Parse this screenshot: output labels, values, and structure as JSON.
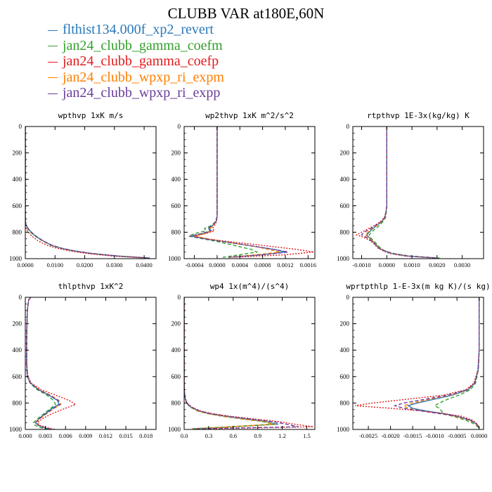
{
  "figure": {
    "title": "CLUBB VAR at180E,60N"
  },
  "legend": [
    {
      "label": "flthist134.000f_xp2_revert",
      "color": "#2a78b8"
    },
    {
      "label": "jan24_clubb_gamma_coefm",
      "color": "#33a02c"
    },
    {
      "label": "jan24_clubb_gamma_coefp",
      "color": "#e31a1c"
    },
    {
      "label": "jan24_clubb_wpxp_ri_expm",
      "color": "#ff7f00"
    },
    {
      "label": "jan24_clubb_wpxp_ri_expp",
      "color": "#6a3d9a"
    }
  ],
  "chart_data": [
    {
      "type": "line",
      "title": "wpthvp  1xK m/s",
      "xlim": [
        0,
        0.044
      ],
      "ylim": [
        1000,
        0
      ],
      "xticks": [
        0,
        0.01,
        0.02,
        0.03,
        0.04
      ],
      "xtick_labels": [
        "0.0000",
        "0.0100",
        "0.0200",
        "0.0300",
        "0.0400"
      ],
      "yticks": [
        0,
        200,
        400,
        600,
        800,
        1000
      ],
      "ytick_labels": [
        "0",
        "200",
        "400",
        "600",
        "800",
        "1000"
      ],
      "y": [
        0,
        600,
        700,
        740,
        760,
        780,
        800,
        820,
        840,
        860,
        880,
        900,
        920,
        940,
        960,
        980,
        995
      ],
      "series": [
        {
          "x": [
            0,
            0,
            0,
            0.0002,
            0.0006,
            0.0012,
            0.002,
            0.003,
            0.0042,
            0.0056,
            0.0072,
            0.009,
            0.012,
            0.016,
            0.022,
            0.031,
            0.042
          ]
        },
        {
          "x": [
            0,
            0,
            0,
            0.0001,
            0.0004,
            0.001,
            0.0018,
            0.0028,
            0.004,
            0.0054,
            0.007,
            0.0088,
            0.0118,
            0.0158,
            0.0218,
            0.0305,
            0.0415
          ]
        },
        {
          "x": [
            0,
            0,
            0,
            0,
            0.0001,
            0.0004,
            0.001,
            0.0018,
            0.0028,
            0.004,
            0.0055,
            0.0075,
            0.0105,
            0.0145,
            0.0205,
            0.029,
            0.04
          ]
        },
        {
          "x": [
            0,
            0,
            0,
            0.0002,
            0.0006,
            0.0012,
            0.0021,
            0.0031,
            0.0043,
            0.0057,
            0.0073,
            0.0092,
            0.0122,
            0.0162,
            0.0222,
            0.031,
            0.042
          ]
        },
        {
          "x": [
            0,
            0,
            0,
            0.0002,
            0.0006,
            0.0012,
            0.002,
            0.003,
            0.0042,
            0.0056,
            0.0072,
            0.0091,
            0.0121,
            0.0161,
            0.0221,
            0.0308,
            0.0418
          ]
        }
      ]
    },
    {
      "type": "line",
      "title": "wp2thvp  1xK m^2/s^2",
      "xlim": [
        -0.00058,
        0.00172
      ],
      "ylim": [
        1000,
        0
      ],
      "xticks": [
        -0.0004,
        0,
        0.0004,
        0.0008,
        0.0012,
        0.0016
      ],
      "xtick_labels": [
        "-0.0004",
        "0.0000",
        "0.0004",
        "0.0008",
        "0.0012",
        "0.0016"
      ],
      "yticks": [
        0,
        200,
        400,
        600,
        800,
        1000
      ],
      "ytick_labels": [
        "0",
        "200",
        "400",
        "600",
        "800",
        "1000"
      ],
      "y": [
        0,
        250,
        280,
        600,
        680,
        720,
        750,
        770,
        790,
        810,
        830,
        850,
        870,
        890,
        910,
        930,
        950,
        970,
        990
      ],
      "series": [
        {
          "x": [
            0,
            0,
            0,
            0,
            0,
            -2e-05,
            -8e-05,
            -0.00015,
            -0.0001,
            -0.00025,
            -0.00045,
            -0.0002,
            0.0001,
            0.0004,
            0.0007,
            0.001,
            0.0012,
            0.0008,
            0.0002
          ]
        },
        {
          "x": [
            0,
            0,
            0,
            0,
            0,
            -3e-05,
            -0.0001,
            -0.00022,
            -0.0002,
            -0.0004,
            -0.0005,
            -0.00025,
            0.0,
            0.0002,
            0.0004,
            0.0006,
            0.0007,
            0.0004,
            0.0001
          ]
        },
        {
          "x": [
            0,
            0,
            0,
            0,
            0,
            -1e-05,
            -5e-05,
            -8e-05,
            -5e-05,
            -0.0002,
            -0.0004,
            -0.0002,
            0.0002,
            0.0006,
            0.001,
            0.0014,
            0.0017,
            0.0012,
            0.0003
          ]
        },
        {
          "x": [
            0,
            0,
            0,
            0,
            0,
            -2e-05,
            -7e-05,
            -0.00012,
            -0.0001,
            -0.0002,
            -0.0004,
            -0.00015,
            0.0001,
            0.0004,
            0.0007,
            0.0009,
            0.0011,
            0.0007,
            0.0002
          ]
        },
        {
          "x": [
            0,
            0,
            0,
            0,
            0,
            -2e-05,
            -9e-05,
            -0.00016,
            -0.00012,
            -0.00028,
            -0.00048,
            -0.00022,
            0.0001,
            0.0004,
            0.0007,
            0.001,
            0.00125,
            0.0008,
            0.0002
          ]
        }
      ]
    },
    {
      "type": "line",
      "title": "rtpthvp  1E-3x(kg/kg) K",
      "xlim": [
        -0.00135,
        0.00385
      ],
      "ylim": [
        1000,
        0
      ],
      "xticks": [
        -0.001,
        0,
        0.001,
        0.002,
        0.003
      ],
      "xtick_labels": [
        "-0.0010",
        "0.0000",
        "0.0010",
        "0.0020",
        "0.0030"
      ],
      "yticks": [
        0,
        200,
        400,
        600,
        800,
        1000
      ],
      "ytick_labels": [
        "0",
        "200",
        "400",
        "600",
        "800",
        "1000"
      ],
      "y": [
        0,
        600,
        650,
        690,
        720,
        750,
        780,
        800,
        820,
        840,
        860,
        880,
        900,
        920,
        940,
        960,
        980,
        995
      ],
      "series": [
        {
          "x": [
            0,
            0,
            -3e-05,
            -8e-05,
            -0.0002,
            -0.0004,
            -0.0006,
            -0.0007,
            -0.0008,
            -0.0007,
            -0.0006,
            -0.0005,
            -0.0004,
            -0.0003,
            -0.0001,
            0.0002,
            0.0008,
            0.002
          ]
        },
        {
          "x": [
            0,
            0,
            -2e-05,
            -5e-05,
            -0.00015,
            -0.0003,
            -0.0005,
            -0.0006,
            -0.0007,
            -0.00065,
            -0.00055,
            -0.00045,
            -0.00035,
            -0.00025,
            -8e-05,
            0.00025,
            0.0009,
            0.0021
          ]
        },
        {
          "x": [
            0,
            0,
            -4e-05,
            -0.0001,
            -0.00025,
            -0.0005,
            -0.0008,
            -0.001,
            -0.0012,
            -0.0009,
            -0.0007,
            -0.00055,
            -0.00045,
            -0.00035,
            -0.00015,
            0.0001,
            0.0007,
            0.0019
          ]
        },
        {
          "x": [
            0,
            0,
            -3e-05,
            -8e-05,
            -0.0002,
            -0.0004,
            -0.00065,
            -0.00075,
            -0.00085,
            -0.00072,
            -0.0006,
            -0.0005,
            -0.0004,
            -0.0003,
            -0.0001,
            0.0002,
            0.0008,
            0.002
          ]
        },
        {
          "x": [
            0,
            0,
            -3e-05,
            -9e-05,
            -0.00022,
            -0.00045,
            -0.0007,
            -0.0009,
            -0.001,
            -0.0008,
            -0.00065,
            -0.00052,
            -0.00042,
            -0.00032,
            -0.00012,
            0.00018,
            0.00078,
            0.00198
          ]
        }
      ]
    },
    {
      "type": "line",
      "title": "thlpthvp  1xK^2",
      "xlim": [
        0,
        0.0195
      ],
      "ylim": [
        1000,
        0
      ],
      "xticks": [
        0,
        0.003,
        0.006,
        0.009,
        0.012,
        0.015,
        0.018
      ],
      "xtick_labels": [
        "0.000",
        "0.003",
        "0.006",
        "0.009",
        "0.012",
        "0.015",
        "0.018"
      ],
      "yticks": [
        0,
        200,
        400,
        600,
        800,
        1000
      ],
      "ytick_labels": [
        "0",
        "200",
        "400",
        "600",
        "800",
        "1000"
      ],
      "y": [
        0,
        20,
        100,
        300,
        500,
        600,
        650,
        700,
        740,
        780,
        810,
        840,
        880,
        920,
        950,
        970,
        990,
        1000
      ],
      "series": [
        {
          "x": [
            0.0008,
            0.0005,
            0.0003,
            0.0002,
            0.0002,
            0.0003,
            0.0008,
            0.002,
            0.0035,
            0.0048,
            0.005,
            0.004,
            0.003,
            0.002,
            0.0015,
            0.002,
            0.003,
            0.004
          ]
        },
        {
          "x": [
            0.0008,
            0.0005,
            0.0003,
            0.0002,
            0.0002,
            0.0003,
            0.0007,
            0.0018,
            0.0032,
            0.0042,
            0.0045,
            0.0038,
            0.0028,
            0.0018,
            0.0012,
            0.0015,
            0.0025,
            0.0035
          ]
        },
        {
          "x": [
            0.0008,
            0.0005,
            0.0003,
            0.0002,
            0.0002,
            0.0004,
            0.0009,
            0.0024,
            0.0045,
            0.0065,
            0.0075,
            0.006,
            0.004,
            0.0025,
            0.0018,
            0.0022,
            0.0035,
            0.0045
          ]
        },
        {
          "x": [
            0.0008,
            0.0005,
            0.0003,
            0.0002,
            0.0002,
            0.0003,
            0.0008,
            0.0021,
            0.0037,
            0.005,
            0.0053,
            0.0043,
            0.0032,
            0.0021,
            0.0016,
            0.0021,
            0.0031,
            0.0041
          ]
        },
        {
          "x": [
            0.0008,
            0.0005,
            0.0003,
            0.0002,
            0.0002,
            0.0003,
            0.0008,
            0.002,
            0.0036,
            0.0049,
            0.0052,
            0.0042,
            0.0031,
            0.0021,
            0.0015,
            0.002,
            0.003,
            0.004
          ]
        }
      ]
    },
    {
      "type": "line",
      "title": "wp4  1x(m^4)/(s^4)",
      "xlim": [
        0,
        1.6
      ],
      "ylim": [
        1000,
        0
      ],
      "xticks": [
        0,
        0.3,
        0.6,
        0.9,
        1.2,
        1.5
      ],
      "xtick_labels": [
        "0.0",
        "0.3",
        "0.6",
        "0.9",
        "1.2",
        "1.5"
      ],
      "yticks": [
        0,
        200,
        400,
        600,
        800,
        1000
      ],
      "ytick_labels": [
        "0",
        "200",
        "400",
        "600",
        "800",
        "1000"
      ],
      "y": [
        0,
        600,
        700,
        760,
        800,
        830,
        860,
        880,
        900,
        920,
        940,
        960,
        980,
        995
      ],
      "series": [
        {
          "x": [
            0,
            0,
            0.002,
            0.01,
            0.03,
            0.08,
            0.18,
            0.3,
            0.5,
            0.75,
            1.0,
            1.15,
            0.6,
            0.1
          ]
        },
        {
          "x": [
            0,
            0,
            0.002,
            0.01,
            0.03,
            0.07,
            0.16,
            0.28,
            0.46,
            0.7,
            0.95,
            1.1,
            0.55,
            0.1
          ]
        },
        {
          "x": [
            0,
            0,
            0.002,
            0.012,
            0.035,
            0.09,
            0.2,
            0.34,
            0.56,
            0.85,
            1.15,
            1.35,
            1.58,
            0.2
          ]
        },
        {
          "x": [
            0,
            0,
            0.002,
            0.01,
            0.03,
            0.08,
            0.17,
            0.29,
            0.48,
            0.72,
            0.98,
            1.12,
            0.58,
            0.1
          ]
        },
        {
          "x": [
            0,
            0,
            0.002,
            0.01,
            0.032,
            0.085,
            0.19,
            0.32,
            0.53,
            0.8,
            1.08,
            1.25,
            1.4,
            0.15
          ]
        }
      ]
    },
    {
      "type": "line",
      "title": "wprtpthlp  1-E-3x(m kg K)/(s kg)",
      "xlim": [
        -0.00285,
        0.0001
      ],
      "ylim": [
        1000,
        0
      ],
      "xticks": [
        -0.0025,
        -0.002,
        -0.0015,
        -0.001,
        -0.0005,
        0
      ],
      "xtick_labels": [
        "-0.0025",
        "-0.0020",
        "-0.0015",
        "-0.0010",
        "-0.0005",
        "0.0000"
      ],
      "yticks": [
        0,
        200,
        400,
        600,
        800,
        1000
      ],
      "ytick_labels": [
        "0",
        "200",
        "400",
        "600",
        "800",
        "1000"
      ],
      "y": [
        0,
        400,
        550,
        650,
        700,
        740,
        770,
        800,
        820,
        840,
        860,
        880,
        900,
        930,
        960,
        990
      ],
      "series": [
        {
          "x": [
            0,
            0,
            -2e-05,
            -0.0001,
            -0.00025,
            -0.0006,
            -0.001,
            -0.0014,
            -0.0016,
            -0.0015,
            -0.0012,
            -0.0008,
            -0.0005,
            -0.0002,
            -5e-05,
            0
          ]
        },
        {
          "x": [
            0,
            0,
            -2e-05,
            -8e-05,
            -0.0002,
            -0.00045,
            -0.0007,
            -0.0009,
            -0.001,
            -0.0009,
            -0.00085,
            -0.0008,
            -0.0006,
            -0.0003,
            -0.0001,
            0
          ]
        },
        {
          "x": [
            0,
            0,
            -3e-05,
            -0.00012,
            -0.0003,
            -0.0008,
            -0.0016,
            -0.0024,
            -0.0028,
            -0.002,
            -0.0013,
            -0.0008,
            -0.0004,
            -0.00015,
            -4e-05,
            0
          ]
        },
        {
          "x": [
            0,
            0,
            -2e-05,
            -0.0001,
            -0.00026,
            -0.00065,
            -0.0011,
            -0.0015,
            -0.0017,
            -0.0016,
            -0.0013,
            -0.0009,
            -0.00055,
            -0.00022,
            -6e-05,
            0
          ]
        },
        {
          "x": [
            0,
            0,
            -2e-05,
            -0.0001,
            -0.00028,
            -0.0007,
            -0.0012,
            -0.0017,
            -0.0019,
            -0.0017,
            -0.0013,
            -0.0009,
            -0.0005,
            -0.0002,
            -5e-05,
            0
          ]
        }
      ]
    }
  ]
}
